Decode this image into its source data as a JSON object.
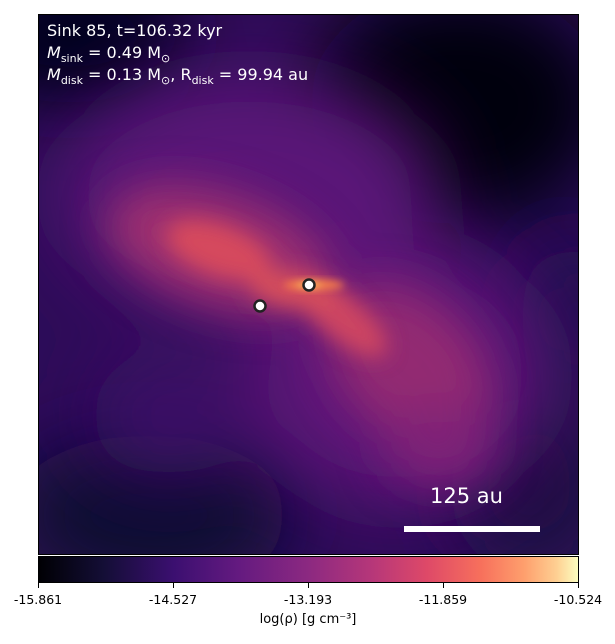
{
  "info": {
    "line1": "Sink 85, t=106.32 kyr",
    "m_sink_label": "M",
    "m_sink_sub": "sink",
    "m_sink_value": " = 0.49 M",
    "m_sun_sub": "⊙",
    "m_disk_label": "M",
    "m_disk_sub": "disk",
    "m_disk_value": " = 0.13 M",
    "m_disk_sun_sub": "⊙",
    "r_disk_sep": ", R",
    "r_disk_sub": "disk",
    "r_disk_value": " = 99.94 au"
  },
  "scale_bar": {
    "label": "125 au"
  },
  "colorbar": {
    "ticks": [
      "-15.861",
      "-14.527",
      "-13.193",
      "-11.859",
      "-10.524"
    ],
    "label": "log(ρ) [g cm⁻³]",
    "colormap": "inferno"
  },
  "sinks": {
    "count": 2,
    "marker_fill": "#ffffff",
    "marker_edge": "#222222"
  }
}
